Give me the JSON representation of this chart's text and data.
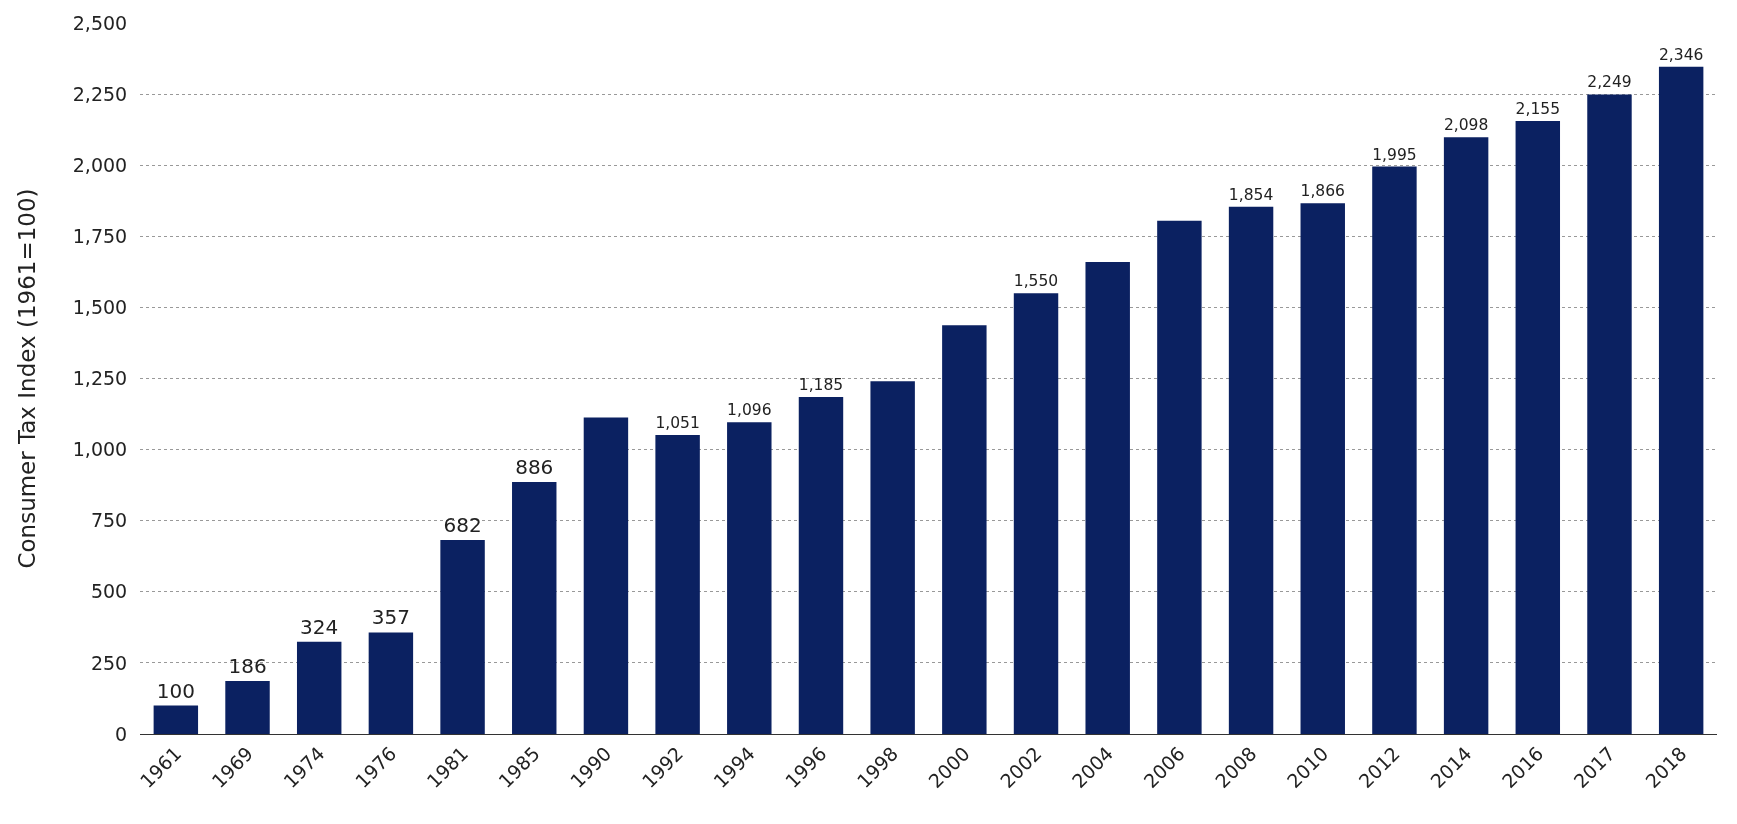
{
  "chart_data": {
    "type": "bar",
    "ylabel": "Consumer Tax Index (1961=100)",
    "categories": [
      "1961",
      "1969",
      "1974",
      "1976",
      "1981",
      "1985",
      "1990",
      "1992",
      "1994",
      "1996",
      "1998",
      "2000",
      "2002",
      "2004",
      "2006",
      "2008",
      "2010",
      "2012",
      "2014",
      "2016",
      "2017",
      "2018"
    ],
    "values": [
      100,
      186,
      324,
      357,
      682,
      886,
      1113,
      1051,
      1096,
      1185,
      1240,
      1437,
      1550,
      1660,
      1805,
      1854,
      1866,
      1995,
      2098,
      2155,
      2249,
      2346
    ],
    "value_labels": [
      "100",
      "186",
      "324",
      "357",
      "682",
      "886",
      null,
      "1,051",
      "1,096",
      "1,185",
      null,
      null,
      "1,550",
      null,
      null,
      "1,854",
      "1,866",
      "1,995",
      "2,098",
      "2,155",
      "2,249",
      "2,346"
    ],
    "color": "#0b2161",
    "ylim": [
      0,
      2500
    ],
    "yticks": [
      {
        "value": 0,
        "label": "0"
      },
      {
        "value": 250,
        "label": "250"
      },
      {
        "value": 500,
        "label": "500"
      },
      {
        "value": 750,
        "label": "750"
      },
      {
        "value": 1000,
        "label": "1,000"
      },
      {
        "value": 1250,
        "label": "1,250"
      },
      {
        "value": 1500,
        "label": "1,500"
      },
      {
        "value": 1750,
        "label": "1,750"
      },
      {
        "value": 2000,
        "label": "2,000"
      },
      {
        "value": 2250,
        "label": "2,250"
      },
      {
        "value": 2500,
        "label": "2,500"
      }
    ],
    "grid": "y"
  }
}
